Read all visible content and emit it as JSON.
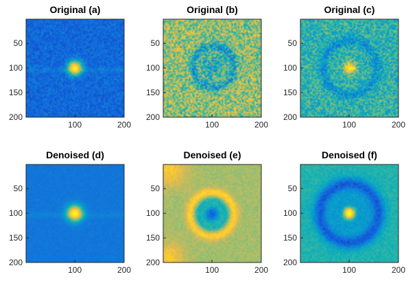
{
  "figure": {
    "colormap": "parula",
    "colors": {
      "background": "#ffffff",
      "axis": "#262626",
      "title_text": "#000000"
    }
  },
  "chart_data": [
    {
      "type": "heatmap",
      "title": "Original (a)",
      "xlabel": "",
      "ylabel": "",
      "xlim": [
        1,
        200
      ],
      "ylim": [
        1,
        200
      ],
      "y_reversed": true,
      "xticks": [
        100,
        200
      ],
      "yticks": [
        50,
        100,
        150,
        200
      ],
      "xtick_labels": [
        "100",
        "200"
      ],
      "ytick_labels": [
        "50",
        "100",
        "150",
        "200"
      ],
      "noise_level": 0.07,
      "components": [
        {
          "kind": "background",
          "value": 0.14
        },
        {
          "kind": "spot",
          "cx": 100,
          "cy": 100,
          "sigma": 10,
          "amplitude": 0.8
        },
        {
          "kind": "band",
          "cy": 104,
          "sigma": 4,
          "amplitude": 0.05
        }
      ]
    },
    {
      "type": "heatmap",
      "title": "Original (b)",
      "xlabel": "",
      "ylabel": "",
      "xlim": [
        1,
        200
      ],
      "ylim": [
        1,
        200
      ],
      "y_reversed": true,
      "xticks": [
        100,
        200
      ],
      "yticks": [
        50,
        100,
        150,
        200
      ],
      "xtick_labels": [
        "100",
        "200"
      ],
      "ytick_labels": [
        "50",
        "100",
        "150",
        "200"
      ],
      "noise_level": 0.22,
      "components": [
        {
          "kind": "background",
          "value": 0.58
        },
        {
          "kind": "ring",
          "cx": 103,
          "cy": 98,
          "radius": 42,
          "width": 6,
          "amplitude": -0.22
        },
        {
          "kind": "spot",
          "cx": 103,
          "cy": 98,
          "sigma": 22,
          "amplitude": -0.2
        }
      ]
    },
    {
      "type": "heatmap",
      "title": "Original (c)",
      "xlabel": "",
      "ylabel": "",
      "xlim": [
        1,
        200
      ],
      "ylim": [
        1,
        200
      ],
      "y_reversed": true,
      "xticks": [
        100,
        200
      ],
      "yticks": [
        50,
        100,
        150,
        200
      ],
      "xtick_labels": [
        "100",
        "200"
      ],
      "ytick_labels": [
        "50",
        "100",
        "150",
        "200"
      ],
      "noise_level": 0.16,
      "components": [
        {
          "kind": "background",
          "value": 0.42
        },
        {
          "kind": "ring",
          "cx": 102,
          "cy": 100,
          "radius": 55,
          "width": 7,
          "amplitude": -0.14
        },
        {
          "kind": "spot",
          "cx": 102,
          "cy": 100,
          "sigma": 8,
          "amplitude": 0.55
        }
      ]
    },
    {
      "type": "heatmap",
      "title": "Denoised (d)",
      "xlabel": "",
      "ylabel": "",
      "xlim": [
        1,
        200
      ],
      "ylim": [
        1,
        200
      ],
      "y_reversed": true,
      "xticks": [
        100,
        200
      ],
      "yticks": [
        50,
        100,
        150,
        200
      ],
      "xtick_labels": [
        "100",
        "200"
      ],
      "ytick_labels": [
        "50",
        "100",
        "150",
        "200"
      ],
      "noise_level": 0.02,
      "components": [
        {
          "kind": "background",
          "value": 0.18
        },
        {
          "kind": "spot",
          "cx": 100,
          "cy": 100,
          "sigma": 11,
          "amplitude": 0.78
        },
        {
          "kind": "band",
          "cy": 104,
          "sigma": 4,
          "amplitude": 0.04
        }
      ]
    },
    {
      "type": "heatmap",
      "title": "Denoised (e)",
      "xlabel": "",
      "ylabel": "",
      "xlim": [
        1,
        200
      ],
      "ylim": [
        1,
        200
      ],
      "y_reversed": true,
      "xticks": [
        100,
        200
      ],
      "yticks": [
        50,
        100,
        150,
        200
      ],
      "xtick_labels": [
        "100",
        "200"
      ],
      "ytick_labels": [
        "50",
        "100",
        "150",
        "200"
      ],
      "noise_level": 0.05,
      "components": [
        {
          "kind": "background",
          "value": 0.6
        },
        {
          "kind": "ring",
          "cx": 100,
          "cy": 102,
          "radius": 44,
          "width": 7,
          "amplitude": 0.22
        },
        {
          "kind": "ring",
          "cx": 100,
          "cy": 102,
          "radius": 30,
          "width": 6,
          "amplitude": -0.18
        },
        {
          "kind": "spot",
          "cx": 100,
          "cy": 102,
          "sigma": 13,
          "amplitude": -0.48
        },
        {
          "kind": "corner",
          "cx": 12,
          "cy": 12,
          "sigma": 25,
          "amplitude": 0.18
        },
        {
          "kind": "corner",
          "cx": 10,
          "cy": 190,
          "sigma": 22,
          "amplitude": 0.18
        }
      ]
    },
    {
      "type": "heatmap",
      "title": "Denoised (f)",
      "xlabel": "",
      "ylabel": "",
      "xlim": [
        1,
        200
      ],
      "ylim": [
        1,
        200
      ],
      "y_reversed": true,
      "xticks": [
        100,
        200
      ],
      "yticks": [
        50,
        100,
        150,
        200
      ],
      "xtick_labels": [
        "100",
        "200"
      ],
      "ytick_labels": [
        "50",
        "100",
        "150",
        "200"
      ],
      "noise_level": 0.05,
      "components": [
        {
          "kind": "background",
          "value": 0.42
        },
        {
          "kind": "ring",
          "cx": 100,
          "cy": 100,
          "radius": 60,
          "width": 9,
          "amplitude": -0.26
        },
        {
          "kind": "spot",
          "cx": 100,
          "cy": 100,
          "sigma": 40,
          "amplitude": -0.16
        },
        {
          "kind": "spot",
          "cx": 100,
          "cy": 100,
          "sigma": 8,
          "amplitude": 0.78
        }
      ]
    }
  ]
}
